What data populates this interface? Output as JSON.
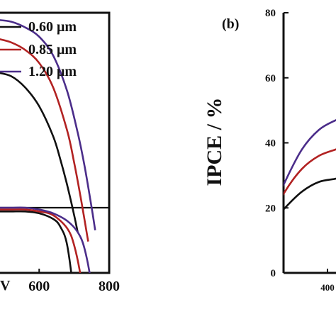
{
  "chart_data": [
    {
      "type": "line",
      "panel": "a",
      "xlabel": "",
      "ylabel": "",
      "xlim": [
        480,
        800
      ],
      "x_ticks": [
        "600",
        "800"
      ],
      "axis_fragment": "V",
      "legend_position": "top-right",
      "series": [
        {
          "name": "0.60 μm",
          "color": "#111111",
          "curves": [
            {
              "x": [
                480,
                520,
                560,
                600,
                640,
                660,
                680,
                700,
                710
              ],
              "y": [
                0.72,
                0.7,
                0.64,
                0.54,
                0.38,
                0.26,
                0.12,
                -0.04,
                -0.13
              ]
            },
            {
              "x": [
                480,
                520,
                560,
                600,
                640,
                660,
                680,
                700,
                710
              ],
              "y": [
                -0.02,
                -0.02,
                -0.02,
                -0.03,
                -0.06,
                -0.1,
                -0.2,
                -0.48,
                -0.7
              ]
            }
          ]
        },
        {
          "name": "0.85 μm",
          "color": "#b22222",
          "curves": [
            {
              "x": [
                480,
                520,
                560,
                600,
                640,
                680,
                700,
                720,
                740
              ],
              "y": [
                0.9,
                0.88,
                0.84,
                0.77,
                0.64,
                0.41,
                0.24,
                0.04,
                -0.18
              ]
            },
            {
              "x": [
                480,
                520,
                560,
                600,
                640,
                680,
                700,
                720,
                740
              ],
              "y": [
                -0.01,
                -0.01,
                -0.01,
                -0.02,
                -0.04,
                -0.11,
                -0.2,
                -0.38,
                -0.66
              ]
            }
          ]
        },
        {
          "name": "1.20 μm",
          "color": "#4b2d8a",
          "curves": [
            {
              "x": [
                480,
                520,
                560,
                600,
                640,
                680,
                710,
                730,
                750,
                760
              ],
              "y": [
                1.0,
                0.99,
                0.96,
                0.91,
                0.81,
                0.62,
                0.4,
                0.22,
                0.0,
                -0.12
              ]
            },
            {
              "x": [
                480,
                520,
                560,
                600,
                640,
                680,
                710,
                730,
                750,
                760
              ],
              "y": [
                0.0,
                0.0,
                0.0,
                -0.01,
                -0.03,
                -0.07,
                -0.13,
                -0.22,
                -0.42,
                -0.64
              ]
            }
          ]
        }
      ]
    },
    {
      "type": "line",
      "panel": "b",
      "title": "(b)",
      "xlabel": "",
      "ylabel": "IPCE / %",
      "ylim": [
        0,
        80
      ],
      "y_ticks": [
        "0",
        "20",
        "40",
        "60",
        "80"
      ],
      "x_ticks": [
        "400"
      ],
      "x": [
        330,
        350,
        370,
        390,
        410,
        420
      ],
      "series": [
        {
          "name": "0.60 μm",
          "color": "#111111",
          "y": [
            14,
            20,
            25,
            28,
            29,
            30
          ]
        },
        {
          "name": "0.85 μm",
          "color": "#b22222",
          "y": [
            15,
            25,
            32,
            36,
            38,
            39
          ]
        },
        {
          "name": "1.20 μm",
          "color": "#4b2d8a",
          "y": [
            16,
            28,
            38,
            44,
            47,
            48
          ]
        }
      ]
    }
  ]
}
